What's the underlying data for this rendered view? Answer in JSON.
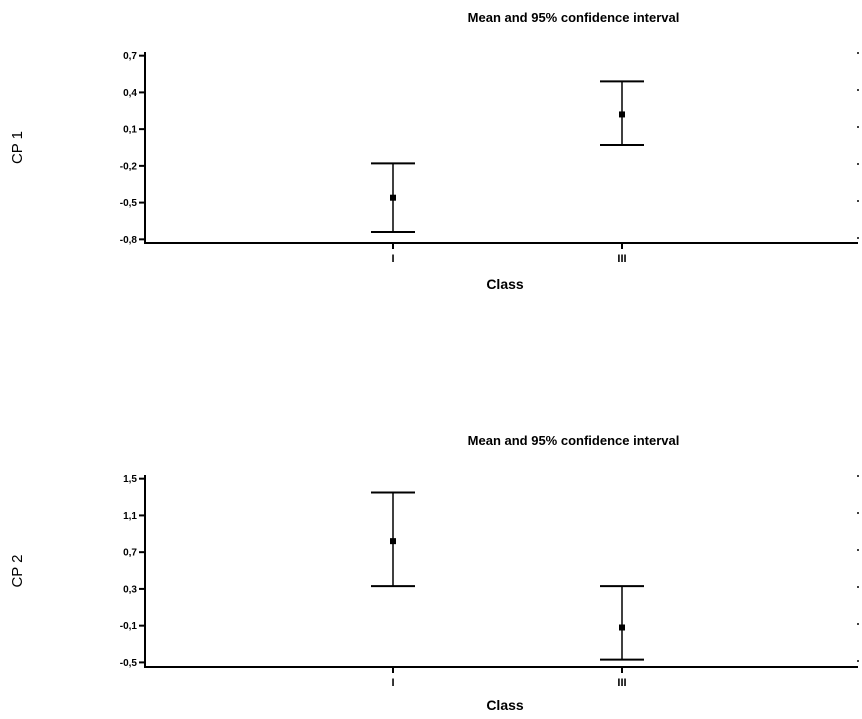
{
  "chart_data": [
    {
      "type": "errorbar",
      "title": "Mean and 95% confidence interval",
      "xlabel": "Class",
      "ylabel": "CP 1",
      "categories": [
        "I",
        "III"
      ],
      "means": [
        -0.46,
        0.22
      ],
      "ci_low": [
        -0.74,
        -0.03
      ],
      "ci_high": [
        -0.18,
        0.49
      ],
      "ylim": [
        -0.83,
        0.73
      ],
      "yticks": [
        0.7,
        0.4,
        0.1,
        -0.2,
        -0.5,
        -0.8
      ],
      "ytick_labels": [
        "0,7",
        "0,4",
        "0,1",
        "-0,2",
        "-0,5",
        "-0,8"
      ],
      "grid": false,
      "legend": "none"
    },
    {
      "type": "errorbar",
      "title": "Mean and 95% confidence interval",
      "xlabel": "Class",
      "ylabel": "CP 2",
      "categories": [
        "I",
        "III"
      ],
      "means": [
        0.82,
        -0.12
      ],
      "ci_low": [
        0.33,
        -0.47
      ],
      "ci_high": [
        1.35,
        0.33
      ],
      "ylim": [
        -0.55,
        1.54
      ],
      "yticks": [
        1.5,
        1.1,
        0.7,
        0.3,
        -0.1,
        -0.5
      ],
      "ytick_labels": [
        "1,5",
        "1,1",
        "0,7",
        "0,3",
        "-0,1",
        "-0,5"
      ],
      "grid": false,
      "legend": "none"
    }
  ]
}
